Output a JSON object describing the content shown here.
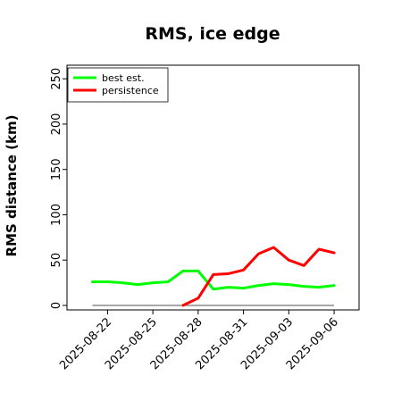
{
  "chart_data": {
    "type": "line",
    "title": "RMS, ice edge",
    "xlabel": "",
    "ylabel": "RMS distance (km)",
    "x": [
      "2025-08-21",
      "2025-08-22",
      "2025-08-23",
      "2025-08-24",
      "2025-08-25",
      "2025-08-26",
      "2025-08-27",
      "2025-08-28",
      "2025-08-29",
      "2025-08-30",
      "2025-08-31",
      "2025-09-01",
      "2025-09-02",
      "2025-09-03",
      "2025-09-04",
      "2025-09-05",
      "2025-09-06"
    ],
    "x_tick_labels": [
      "2025-08-22",
      "2025-08-25",
      "2025-08-28",
      "2025-08-31",
      "2025-09-03",
      "2025-09-06"
    ],
    "ylim": [
      -5,
      265
    ],
    "y_ticks": [
      0,
      50,
      100,
      150,
      200,
      250
    ],
    "grid": false,
    "legend_position": "top-left",
    "series": [
      {
        "name": "best est.",
        "color": "#00ff00",
        "values": [
          26,
          26,
          25,
          23,
          25,
          26,
          38,
          38,
          18,
          20,
          19,
          22,
          24,
          23,
          21,
          20,
          22
        ]
      },
      {
        "name": "persistence",
        "color": "#ff0000",
        "values": [
          null,
          null,
          null,
          null,
          null,
          null,
          0,
          8,
          34,
          35,
          39,
          57,
          64,
          50,
          44,
          62,
          58
        ]
      }
    ],
    "baseline": {
      "value": 0,
      "color": "#808080"
    }
  }
}
